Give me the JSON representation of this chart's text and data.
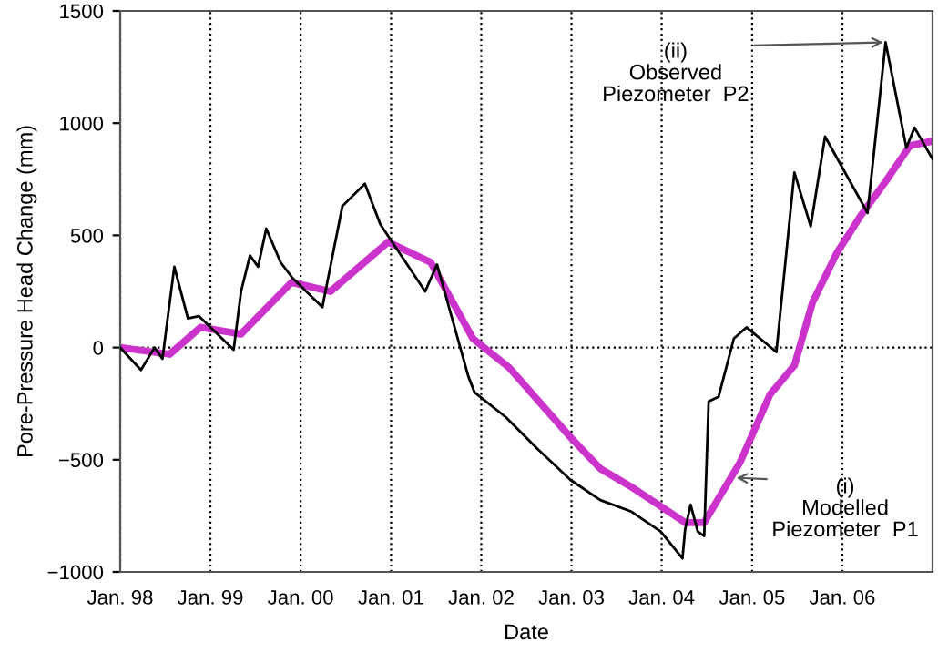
{
  "chart_data": {
    "type": "line",
    "xlabel": "Date",
    "ylabel": "Pore-Pressure Head Change (mm)",
    "series": [
      {
        "color": "#000000",
        "x": [
          "1998-01-01",
          "1998-03-26",
          "1998-05-20",
          "1998-06-21",
          "1998-08-08",
          "1998-10-02",
          "1998-11-15",
          "1999-04-05",
          "1999-05-05",
          "1999-06-10",
          "1999-07-13",
          "1999-08-15",
          "1999-10-12",
          "1999-11-29",
          "2000-03-29",
          "2000-06-18",
          "2000-09-17",
          "2000-11-18",
          "2001-05-19",
          "2001-07-06",
          "2001-11-10",
          "2001-12-05",
          "2002-04-10",
          "2002-08-15",
          "2002-12-28",
          "2003-04-28",
          "2003-08-29",
          "2003-12-28",
          "2004-03-25",
          "2004-04-05",
          "2004-04-27",
          "2004-05-26",
          "2004-06-21",
          "2004-07-09",
          "2004-08-18",
          "2004-10-19",
          "2004-12-09",
          "2005-04-09",
          "2005-06-21",
          "2005-08-26",
          "2005-10-23",
          "2006-04-13",
          "2006-06-25",
          "2006-09-17",
          "2006-10-20",
          "2007-01-01"
        ],
        "values": [
          0,
          -100,
          0,
          -50,
          360,
          130,
          140,
          -10,
          250,
          410,
          360,
          530,
          380,
          310,
          180,
          630,
          730,
          550,
          250,
          370,
          -130,
          -200,
          -310,
          -450,
          -590,
          -680,
          -730,
          -820,
          -940,
          -810,
          -700,
          -820,
          -840,
          -240,
          -220,
          40,
          90,
          -20,
          780,
          540,
          940,
          600,
          1360,
          890,
          980,
          840
        ]
      },
      {
        "color": "#cc33cc",
        "x": [
          "1998-01-01",
          "1998-07-20",
          "1998-11-22",
          "1999-05-05",
          "1999-11-25",
          "2000-05-01",
          "2000-12-20",
          "2001-06-10",
          "2001-11-28",
          "2002-04-24",
          "2002-12-28",
          "2003-04-28",
          "2003-08-29",
          "2004-04-05",
          "2004-06-21",
          "2004-11-14",
          "2005-03-14",
          "2005-06-21",
          "2005-09-02",
          "2005-12-09",
          "2006-03-18",
          "2006-06-25",
          "2006-10-02",
          "2007-01-01"
        ],
        "values": [
          0,
          -30,
          90,
          60,
          290,
          250,
          470,
          380,
          40,
          -90,
          -400,
          -540,
          -620,
          -780,
          -780,
          -510,
          -210,
          -80,
          200,
          420,
          590,
          740,
          900,
          920
        ]
      }
    ],
    "xlim": [
      "1998-01-01",
      "2007-01-01"
    ],
    "xticks": [
      {
        "value": "1998-01-01",
        "label": "Jan. 98"
      },
      {
        "value": "1999-01-01",
        "label": "Jan. 99"
      },
      {
        "value": "2000-01-01",
        "label": "Jan. 00"
      },
      {
        "value": "2001-01-01",
        "label": "Jan. 01"
      },
      {
        "value": "2002-01-01",
        "label": "Jan. 02"
      },
      {
        "value": "2003-01-01",
        "label": "Jan. 03"
      },
      {
        "value": "2004-01-01",
        "label": "Jan. 04"
      },
      {
        "value": "2005-01-01",
        "label": "Jan. 05"
      },
      {
        "value": "2006-01-01",
        "label": "Jan. 06"
      }
    ],
    "ylim": [
      -1000,
      1500
    ],
    "yticks": [
      {
        "value": -1000,
        "label": "−1000"
      },
      {
        "value": -500,
        "label": "−500"
      },
      0,
      500,
      1000,
      1500
    ],
    "grid": "x",
    "ref_lines": [
      {
        "axis": "y",
        "value": 0,
        "line_style": "dotted",
        "color": "#000000"
      }
    ],
    "annotations": [
      {
        "text": "(ii)\nObserved\nPiezometer  P2",
        "x": "2006-06-25",
        "y": 1360
      },
      {
        "text": "(i)\nModelled\nPiezometer  P1",
        "x": "2004-10-19",
        "y": -580
      }
    ]
  }
}
